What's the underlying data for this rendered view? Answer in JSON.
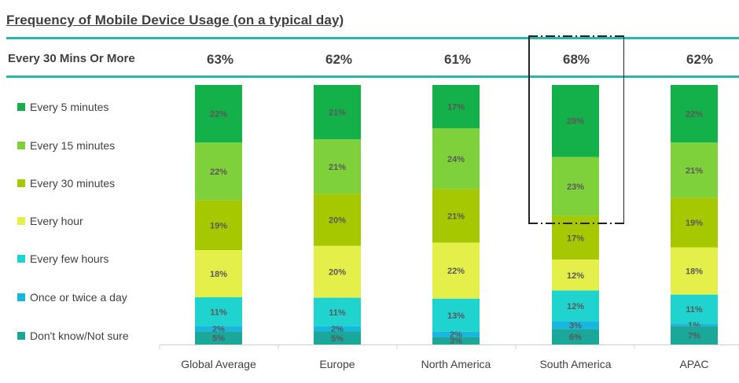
{
  "title": "Frequency of Mobile Device Usage (on a typical day)",
  "summary_row": {
    "label": "Every 30 Mins Or More",
    "values": [
      "63%",
      "62%",
      "61%",
      "68%",
      "62%"
    ]
  },
  "legend": [
    {
      "label": "Every 5 minutes",
      "color": "#14b04a"
    },
    {
      "label": "Every 15 minutes",
      "color": "#7fd13b"
    },
    {
      "label": "Every 30 minutes",
      "color": "#a6c800"
    },
    {
      "label": "Every hour",
      "color": "#e4ef4a"
    },
    {
      "label": "Every few hours",
      "color": "#1fd3cf"
    },
    {
      "label": "Once or twice a day",
      "color": "#17b7e0"
    },
    {
      "label": "Don't know/Not sure",
      "color": "#1aa89a"
    }
  ],
  "chart_data": {
    "type": "bar",
    "stacked": true,
    "orientation": "vertical",
    "categories": [
      "Global Average",
      "Europe",
      "North America",
      "South America",
      "APAC"
    ],
    "series": [
      {
        "name": "Every 5 minutes",
        "values": [
          22,
          21,
          17,
          28,
          22
        ]
      },
      {
        "name": "Every 15 minutes",
        "values": [
          22,
          21,
          24,
          23,
          21
        ]
      },
      {
        "name": "Every 30 minutes",
        "values": [
          19,
          20,
          21,
          17,
          19
        ]
      },
      {
        "name": "Every hour",
        "values": [
          18,
          20,
          22,
          12,
          18
        ]
      },
      {
        "name": "Every few hours",
        "values": [
          11,
          11,
          13,
          12,
          11
        ]
      },
      {
        "name": "Once or twice a day",
        "values": [
          2,
          2,
          2,
          3,
          1
        ]
      },
      {
        "name": "Don't know/Not sure",
        "values": [
          5,
          5,
          3,
          6,
          7
        ]
      }
    ],
    "value_labels": [
      [
        "22%",
        "22%",
        "19%",
        "18%",
        "11%",
        "2%",
        "5%"
      ],
      [
        "21%",
        "21%",
        "20%",
        "20%",
        "11%",
        "2%",
        "5%"
      ],
      [
        "17%",
        "24%",
        "21%",
        "22%",
        "13%",
        "2%",
        "3%"
      ],
      [
        "28%",
        "23%",
        "17%",
        "12%",
        "12%",
        "3%",
        "6%"
      ],
      [
        "22%",
        "21%",
        "19%",
        "18%",
        "11%",
        "1%",
        "7%"
      ]
    ],
    "highlight": "South America",
    "ylim": [
      0,
      100
    ],
    "grid": false
  }
}
